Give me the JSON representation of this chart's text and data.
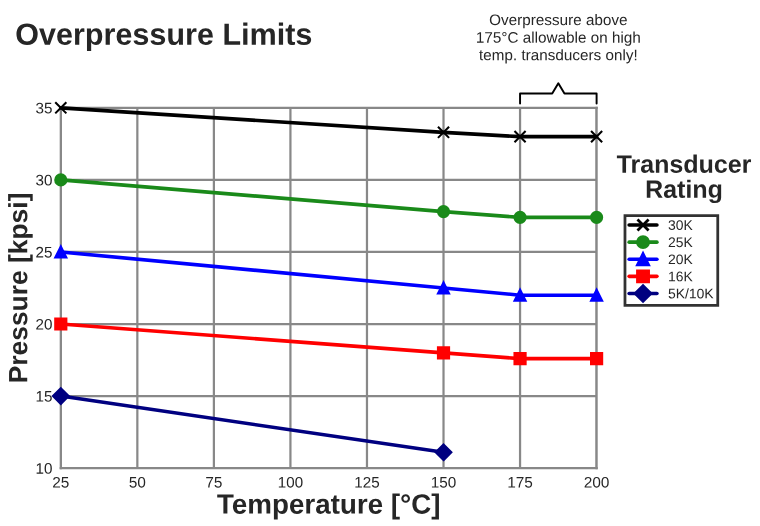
{
  "chart_data": {
    "type": "line",
    "title": "Overpressure Limits",
    "xlabel": "Temperature [°C]",
    "ylabel": "Pressure [kpsi]",
    "legend_title": "Transducer\nRating",
    "x": [
      25,
      150,
      175,
      200
    ],
    "series": [
      {
        "name": "30K",
        "color": "#000000",
        "marker": "cross",
        "values": [
          35,
          33.3,
          33,
          33
        ]
      },
      {
        "name": "25K",
        "color": "#1a8a1a",
        "marker": "circle",
        "values": [
          30,
          27.8,
          27.4,
          27.4
        ]
      },
      {
        "name": "20K",
        "color": "#0000ff",
        "marker": "triangle",
        "values": [
          25,
          22.5,
          22,
          22
        ]
      },
      {
        "name": "16K",
        "color": "#ff0000",
        "marker": "square",
        "values": [
          20,
          18,
          17.6,
          17.6
        ]
      },
      {
        "name": "5K/10K",
        "color": "#000080",
        "marker": "diamond",
        "x": [
          25,
          150
        ],
        "values": [
          15,
          11.1
        ]
      }
    ],
    "xlim": [
      25,
      200
    ],
    "xticks": [
      25,
      50,
      75,
      100,
      125,
      150,
      175,
      200
    ],
    "ylim": [
      10,
      35
    ],
    "yticks": [
      10,
      15,
      20,
      25,
      30,
      35
    ],
    "grid": true,
    "legend": "right",
    "annotations": [
      "Overpressure above\n175°C allowable on high\ntemp. transducers only!"
    ]
  }
}
